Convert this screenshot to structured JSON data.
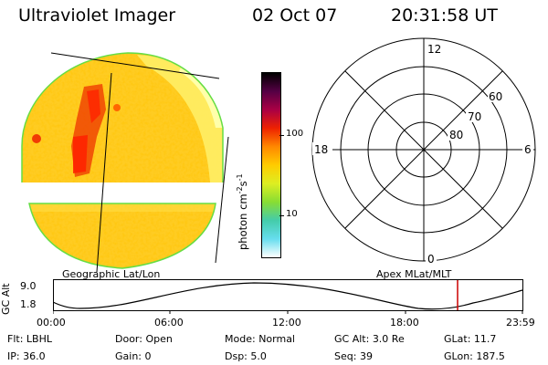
{
  "header": {
    "instrument": "Ultraviolet Imager",
    "date": "02 Oct 07",
    "time": "20:31:58 UT"
  },
  "colorbar": {
    "unit_main": "photon cm",
    "unit_sup1": "-2",
    "unit_mid": "s",
    "unit_sup2": "-1",
    "ticks": [
      "100",
      "10"
    ],
    "stops": [
      "#ffffff",
      "#66ddee",
      "#44ccaa",
      "#88dd33",
      "#ddee22",
      "#ffcc00",
      "#ff8800",
      "#ee2200",
      "#aa0044",
      "#550044",
      "#000000"
    ]
  },
  "panels": {
    "left_label": "Geographic Lat/Lon",
    "right_label": "Apex MLat/MLT"
  },
  "polar_plot": {
    "mlt_labels": {
      "top": "12",
      "left": "18",
      "right": "6",
      "bottom": "0"
    },
    "lat_labels": [
      "60",
      "70",
      "80"
    ]
  },
  "orbit_plot": {
    "ylabel": "GC Alt",
    "y_ticks": [
      "9.0",
      "1.8"
    ],
    "x_ticks": [
      "00:00",
      "06:00",
      "12:00",
      "18:00",
      "23:59"
    ],
    "marker_color": "#cc0000"
  },
  "status": {
    "row1": [
      {
        "key": "Flt:",
        "val": "LBHL"
      },
      {
        "key": "Door:",
        "val": "Open"
      },
      {
        "key": "Mode:",
        "val": "Normal"
      },
      {
        "key": "GC Alt:",
        "val": "3.0 Re"
      },
      {
        "key": "GLat:",
        "val": "11.7"
      }
    ],
    "row2": [
      {
        "key": "IP:",
        "val": "36.0"
      },
      {
        "key": "Gain:",
        "val": "0"
      },
      {
        "key": "Dsp:",
        "val": "5.0"
      },
      {
        "key": "Seq:",
        "val": "39"
      },
      {
        "key": "GLon:",
        "val": "187.5"
      }
    ]
  }
}
